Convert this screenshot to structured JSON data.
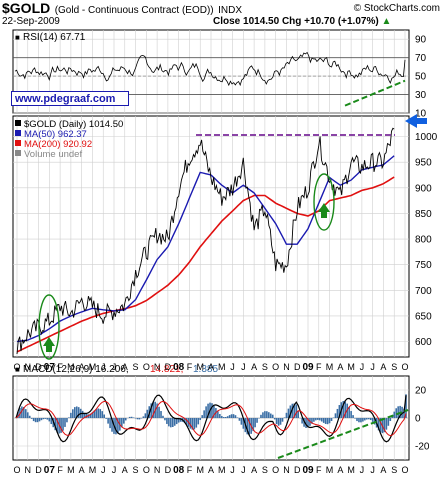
{
  "header": {
    "symbol": "$GOLD",
    "description": "(Gold - Continuous Contract (EOD))",
    "exchange": "INDX",
    "watermark": "© StockCharts.com",
    "date": "22-Sep-2009",
    "close_label": "Close 1014.50",
    "chg_label": "Chg +10.70 (+1.07%)",
    "chg_arrow": "▲"
  },
  "colors": {
    "price": "#000000",
    "ma50": "#1a1ab0",
    "ma200": "#e01010",
    "trendline": "#1a8a1a",
    "resistance": "#7a2a9a",
    "arrow_blue": "#1060e0",
    "arrow_green": "#1a8a1a",
    "macd_hist": "#3a6ea5",
    "grid": "#cfcfcf"
  },
  "url_text": "www.pdegraaf.com",
  "chart_data": [
    {
      "type": "line",
      "panel": "RSI",
      "title": "RSI(14) 67.71",
      "ylim": [
        10,
        100
      ],
      "yticks": [
        10,
        30,
        50,
        70,
        90
      ],
      "reference_lines": [
        30,
        70
      ],
      "series": [
        {
          "name": "RSI(14)",
          "last": 67.71
        }
      ],
      "annotations": [
        "green dashed rising trendline (late 2009)"
      ]
    },
    {
      "type": "line",
      "panel": "Price",
      "legend": [
        {
          "label": "$GOLD (Daily) 1014.50",
          "color": "#000000"
        },
        {
          "label": "MA(50) 962.37",
          "color": "#1a1ab0"
        },
        {
          "label": "MA(200) 920.92",
          "color": "#e01010"
        },
        {
          "label": "Volume undef",
          "color": "#888888"
        }
      ],
      "legend_position": "top-left",
      "ylim": [
        570,
        1040
      ],
      "yticks": [
        600,
        650,
        700,
        750,
        800,
        850,
        900,
        950,
        1000
      ],
      "x": [
        "2006-10",
        "2006-11",
        "2006-12",
        "2007-01",
        "2007-02",
        "2007-03",
        "2007-04",
        "2007-05",
        "2007-06",
        "2007-07",
        "2007-08",
        "2007-09",
        "2007-10",
        "2007-11",
        "2007-12",
        "2008-01",
        "2008-02",
        "2008-03",
        "2008-04",
        "2008-05",
        "2008-06",
        "2008-07",
        "2008-08",
        "2008-09",
        "2008-10",
        "2008-11",
        "2008-12",
        "2009-01",
        "2009-02",
        "2009-03",
        "2009-04",
        "2009-05",
        "2009-06",
        "2009-07",
        "2009-08",
        "2009-09"
      ],
      "series": [
        {
          "name": "$GOLD (Daily)",
          "values": [
            590,
            615,
            628,
            640,
            668,
            655,
            680,
            668,
            652,
            660,
            672,
            735,
            775,
            810,
            800,
            900,
            960,
            990,
            920,
            880,
            900,
            950,
            820,
            860,
            750,
            750,
            860,
            900,
            990,
            920,
            885,
            950,
            940,
            950,
            950,
            1014.5
          ]
        },
        {
          "name": "MA(50)",
          "values": [
            600,
            603,
            612,
            625,
            640,
            650,
            658,
            665,
            662,
            660,
            662,
            682,
            720,
            760,
            785,
            830,
            880,
            930,
            925,
            905,
            890,
            905,
            890,
            860,
            830,
            790,
            790,
            820,
            870,
            920,
            905,
            915,
            935,
            940,
            945,
            962.37
          ]
        },
        {
          "name": "MA(200)",
          "values": [
            580,
            590,
            600,
            610,
            620,
            630,
            640,
            648,
            655,
            660,
            664,
            670,
            680,
            695,
            710,
            730,
            755,
            785,
            810,
            835,
            855,
            875,
            885,
            885,
            870,
            860,
            850,
            845,
            855,
            875,
            880,
            885,
            895,
            900,
            908,
            920.92
          ]
        }
      ],
      "annotations": [
        {
          "text": "purple dashed resistance line near 1000"
        },
        {
          "text": "blue arrow pointing at 1000 level"
        },
        {
          "text": "green up arrows in circled lows (2007, 2009)"
        }
      ]
    },
    {
      "type": "line",
      "panel": "MACD",
      "title_parts": [
        "MACD(12,26,9) 16.206,",
        "14.821,",
        "1.385"
      ],
      "ylim": [
        -30,
        30
      ],
      "yticks": [
        -20,
        0,
        20
      ],
      "series": [
        {
          "name": "MACD",
          "last": 16.206
        },
        {
          "name": "Signal",
          "last": 14.821
        },
        {
          "name": "Histogram",
          "last": 1.385
        }
      ],
      "annotations": [
        "green dashed rising trendline from late 2008 low"
      ]
    }
  ],
  "xaxis": {
    "months": [
      "O",
      "N",
      "D",
      "07",
      "F",
      "M",
      "A",
      "M",
      "J",
      "J",
      "A",
      "S",
      "O",
      "N",
      "D",
      "08",
      "F",
      "M",
      "A",
      "M",
      "J",
      "J",
      "A",
      "S",
      "O",
      "N",
      "D",
      "09",
      "F",
      "M",
      "A",
      "M",
      "J",
      "J",
      "A",
      "S",
      "O"
    ],
    "bold_indices": [
      3,
      15,
      27
    ]
  }
}
